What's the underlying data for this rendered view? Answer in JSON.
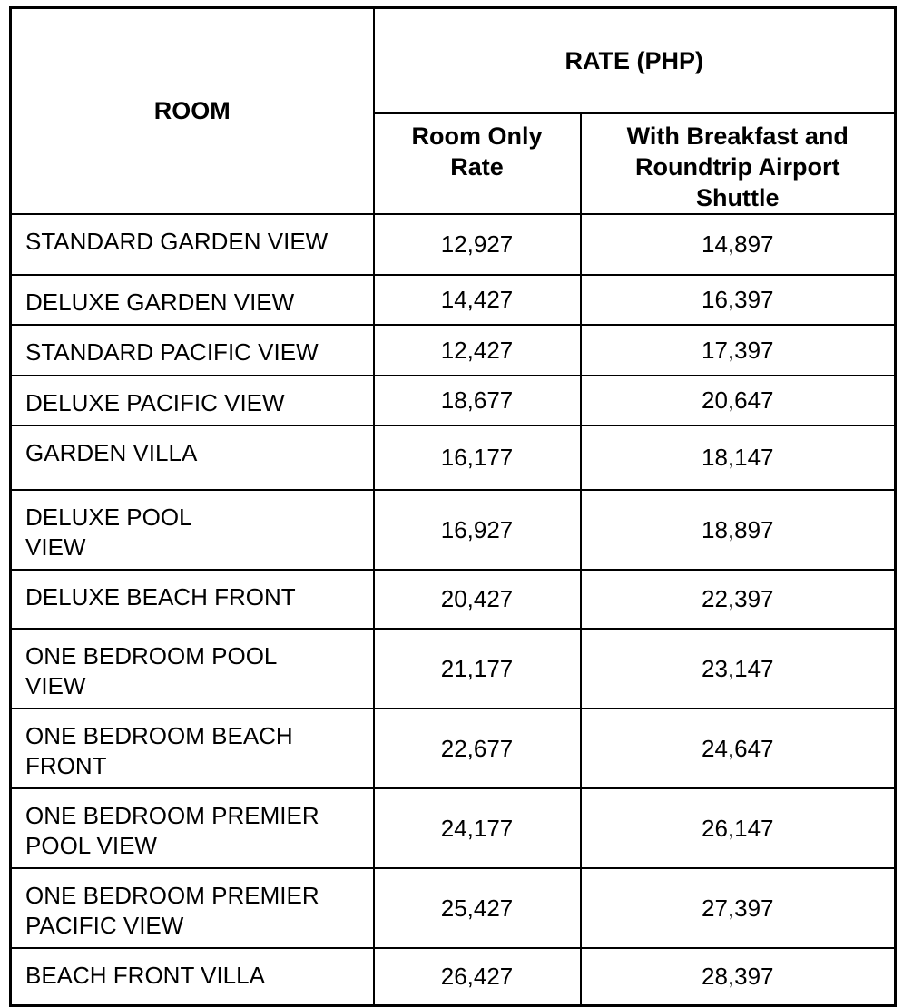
{
  "table": {
    "header": {
      "room_label": "ROOM",
      "rate_group_label": "RATE (PHP)",
      "room_only_label": "Room Only\nRate",
      "with_breakfast_label": "With Breakfast and\nRoundtrip Airport\nShuttle"
    },
    "rows": [
      {
        "room": "STANDARD GARDEN VIEW",
        "room_only": "12,927",
        "with_breakfast": "14,897"
      },
      {
        "room": "DELUXE GARDEN VIEW",
        "room_only": "14,427",
        "with_breakfast": "16,397"
      },
      {
        "room": "STANDARD PACIFIC VIEW",
        "room_only": "12,427",
        "with_breakfast": "17,397"
      },
      {
        "room": "DELUXE PACIFIC VIEW",
        "room_only": "18,677",
        "with_breakfast": "20,647"
      },
      {
        "room": "GARDEN VILLA",
        "room_only": "16,177",
        "with_breakfast": "18,147"
      },
      {
        "room": "DELUXE POOL\nVIEW",
        "room_only": "16,927",
        "with_breakfast": "18,897"
      },
      {
        "room": "DELUXE BEACH FRONT",
        "room_only": "20,427",
        "with_breakfast": "22,397"
      },
      {
        "room": "ONE BEDROOM POOL\nVIEW",
        "room_only": "21,177",
        "with_breakfast": "23,147"
      },
      {
        "room": "ONE BEDROOM BEACH\nFRONT",
        "room_only": "22,677",
        "with_breakfast": "24,647"
      },
      {
        "room": "ONE BEDROOM PREMIER\nPOOL VIEW",
        "room_only": "24,177",
        "with_breakfast": "26,147"
      },
      {
        "room": "ONE BEDROOM PREMIER\nPACIFIC VIEW",
        "room_only": "25,427",
        "with_breakfast": "27,397"
      },
      {
        "room": "BEACH FRONT VILLA",
        "room_only": "26,427",
        "with_breakfast": "28,397"
      }
    ],
    "colors": {
      "border": "#000000",
      "text": "#000000",
      "background": "#ffffff"
    }
  }
}
